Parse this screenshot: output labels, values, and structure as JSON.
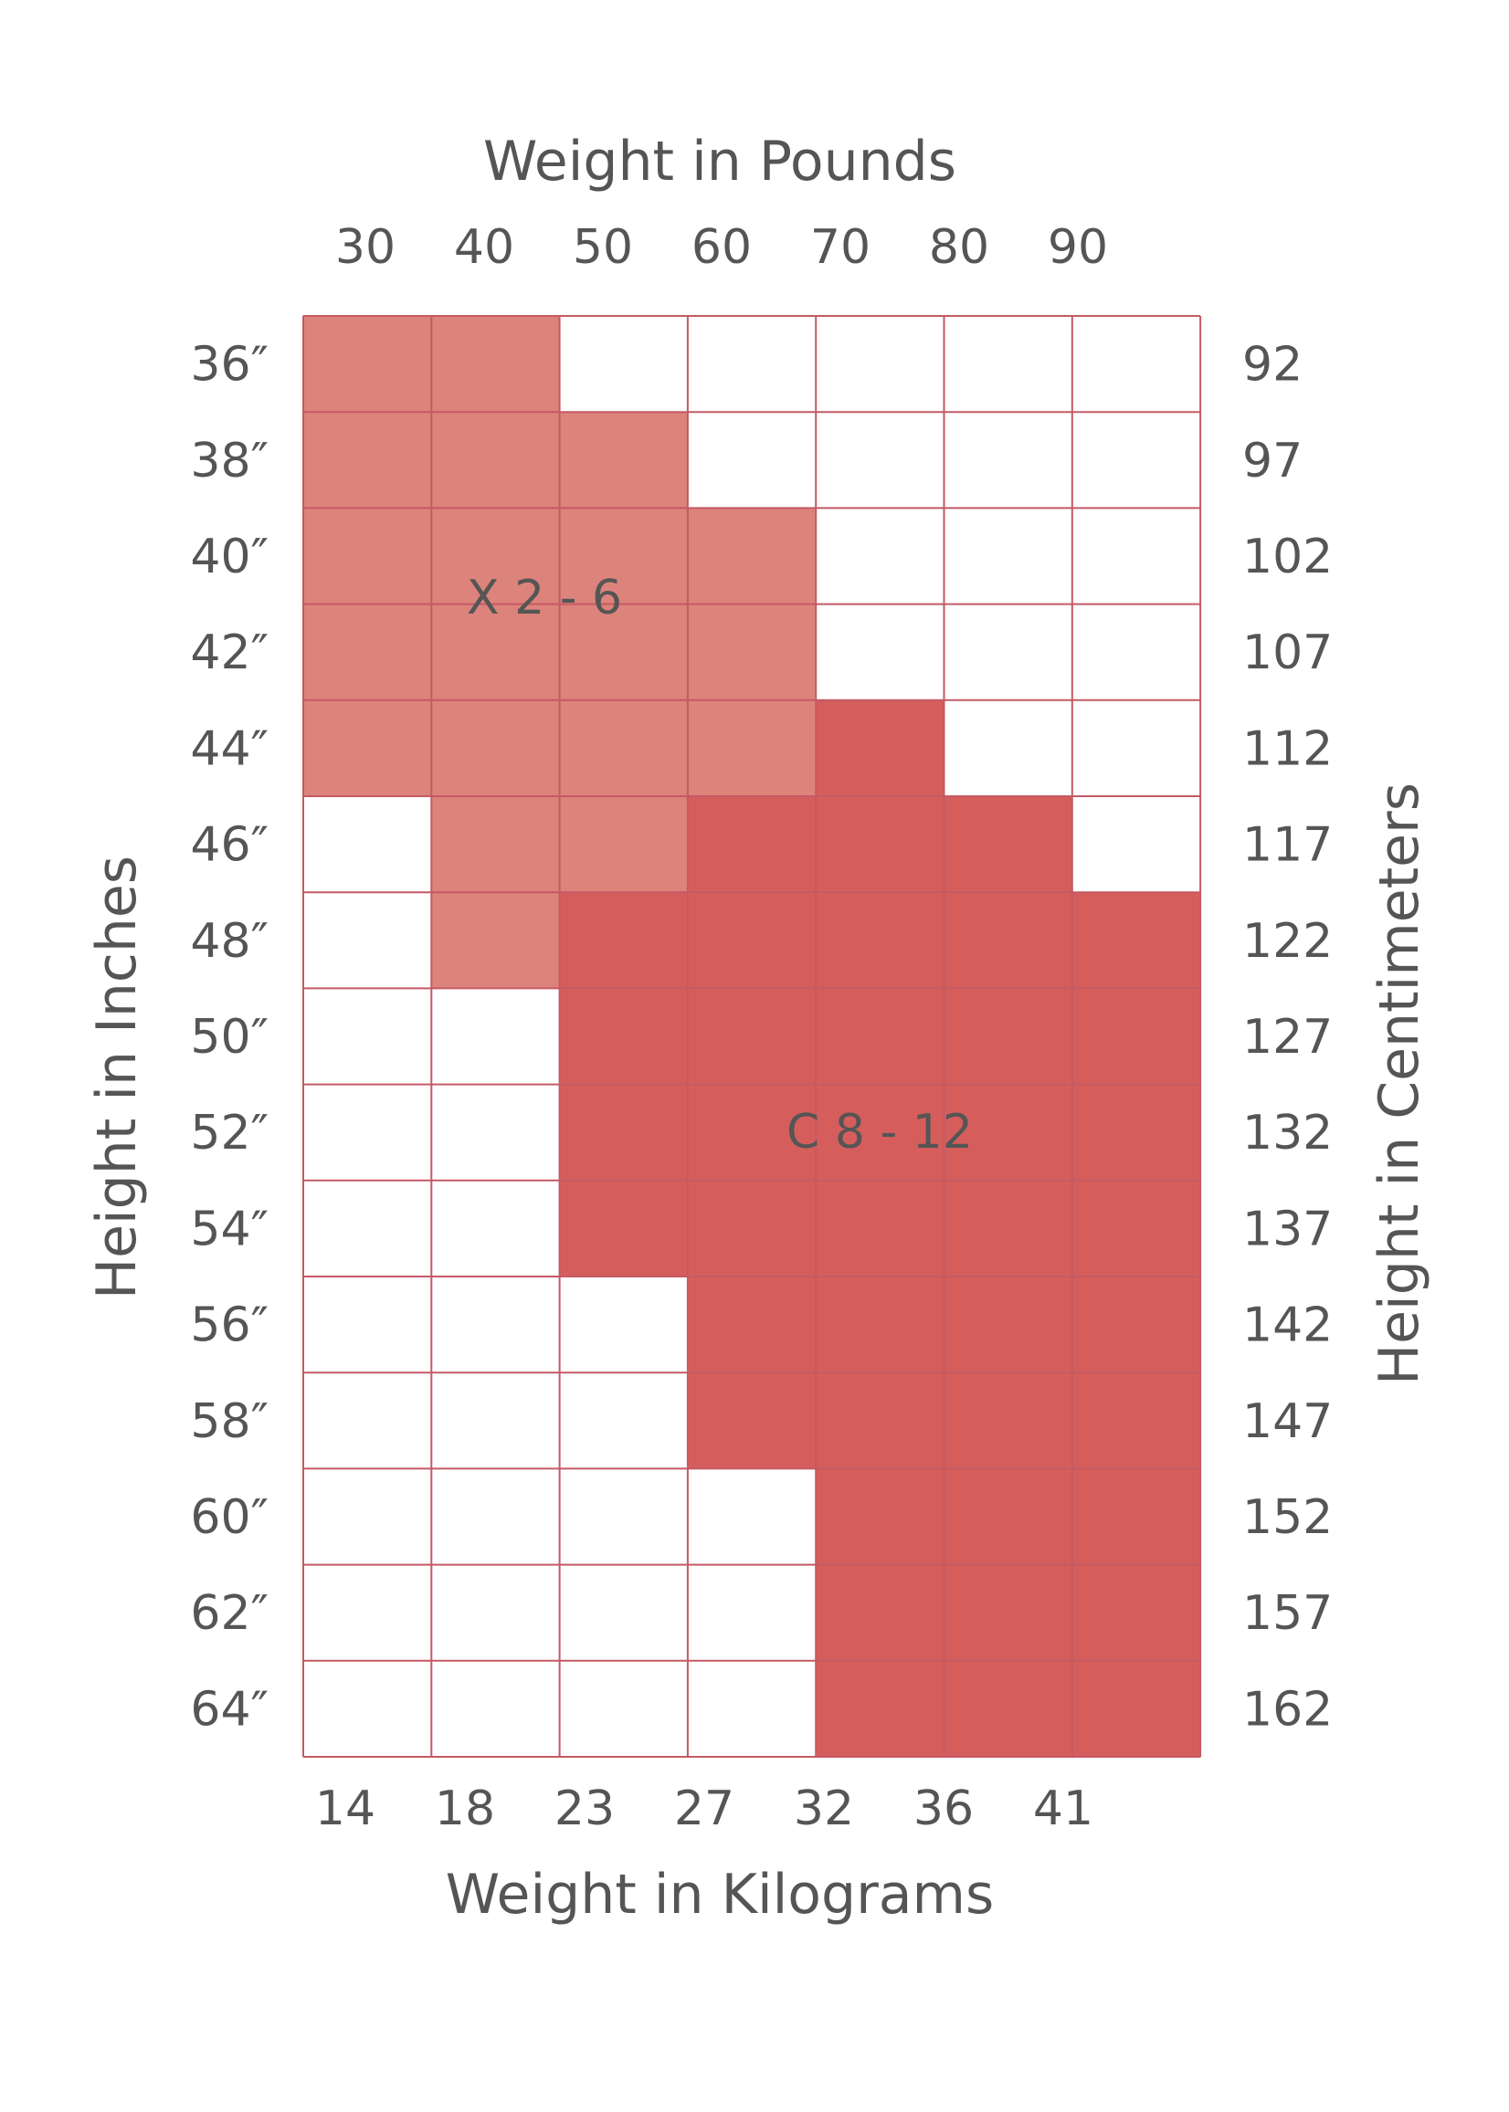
{
  "chart_data": {
    "type": "heatmap",
    "title": "",
    "top_axis_title": "Weight in Pounds",
    "bottom_axis_title": "Weight in Kilograms",
    "left_axis_title": "Height in Inches",
    "right_axis_title": "Height in Centimeters",
    "weight_pounds": [
      "30",
      "40",
      "50",
      "60",
      "70",
      "80",
      "90"
    ],
    "weight_kilograms": [
      "14",
      "18",
      "23",
      "27",
      "32",
      "36",
      "41"
    ],
    "height_inches": [
      "36″",
      "38″",
      "40″",
      "42″",
      "44″",
      "46″",
      "48″",
      "50″",
      "52″",
      "54″",
      "56″",
      "58″",
      "60″",
      "62″",
      "64″"
    ],
    "height_centimeters": [
      "92",
      "97",
      "102",
      "107",
      "112",
      "117",
      "122",
      "127",
      "132",
      "137",
      "142",
      "147",
      "152",
      "157",
      "162"
    ],
    "regions": [
      {
        "key": "X",
        "label": "X 2 - 6",
        "color": "#dc837b"
      },
      {
        "key": "C",
        "label": "C 8 - 12",
        "color": "#d55e5c"
      }
    ],
    "grid": [
      [
        "X",
        "X",
        "",
        "",
        "",
        "",
        ""
      ],
      [
        "X",
        "X",
        "X",
        "",
        "",
        "",
        ""
      ],
      [
        "X",
        "X",
        "X",
        "X",
        "",
        "",
        ""
      ],
      [
        "X",
        "X",
        "X",
        "X",
        "",
        "",
        ""
      ],
      [
        "X",
        "X",
        "X",
        "X",
        "C",
        "",
        ""
      ],
      [
        "",
        "X",
        "X",
        "C",
        "C",
        "C",
        ""
      ],
      [
        "",
        "X",
        "C",
        "C",
        "C",
        "C",
        "C"
      ],
      [
        "",
        "",
        "C",
        "C",
        "C",
        "C",
        "C"
      ],
      [
        "",
        "",
        "C",
        "C",
        "C",
        "C",
        "C"
      ],
      [
        "",
        "",
        "C",
        "C",
        "C",
        "C",
        "C"
      ],
      [
        "",
        "",
        "",
        "C",
        "C",
        "C",
        "C"
      ],
      [
        "",
        "",
        "",
        "C",
        "C",
        "C",
        "C"
      ],
      [
        "",
        "",
        "",
        "",
        "C",
        "C",
        "C"
      ],
      [
        "",
        "",
        "",
        "",
        "C",
        "C",
        "C"
      ],
      [
        "",
        "",
        "",
        "",
        "C",
        "C",
        "C"
      ]
    ],
    "grid_line_color": "#c45a63",
    "empty_color": "#ffffff",
    "text_color": "#555555"
  }
}
